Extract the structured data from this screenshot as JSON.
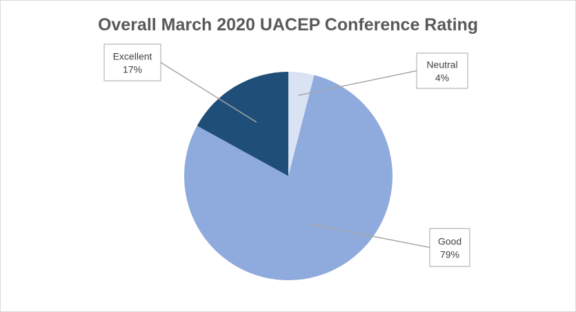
{
  "chart_data": {
    "type": "pie",
    "title": "Overall March 2020 UACEP Conference Rating",
    "slices": [
      {
        "label": "Neutral",
        "value": 4,
        "display": "4%",
        "color": "#dae3f3"
      },
      {
        "label": "Good",
        "value": 79,
        "display": "79%",
        "color": "#8faadc"
      },
      {
        "label": "Excellent",
        "value": 17,
        "display": "17%",
        "color": "#1f4e79"
      }
    ],
    "start_angle_deg": 0,
    "direction": "clockwise",
    "data_labels": "callouts with category name and percentage",
    "legend": "none"
  }
}
